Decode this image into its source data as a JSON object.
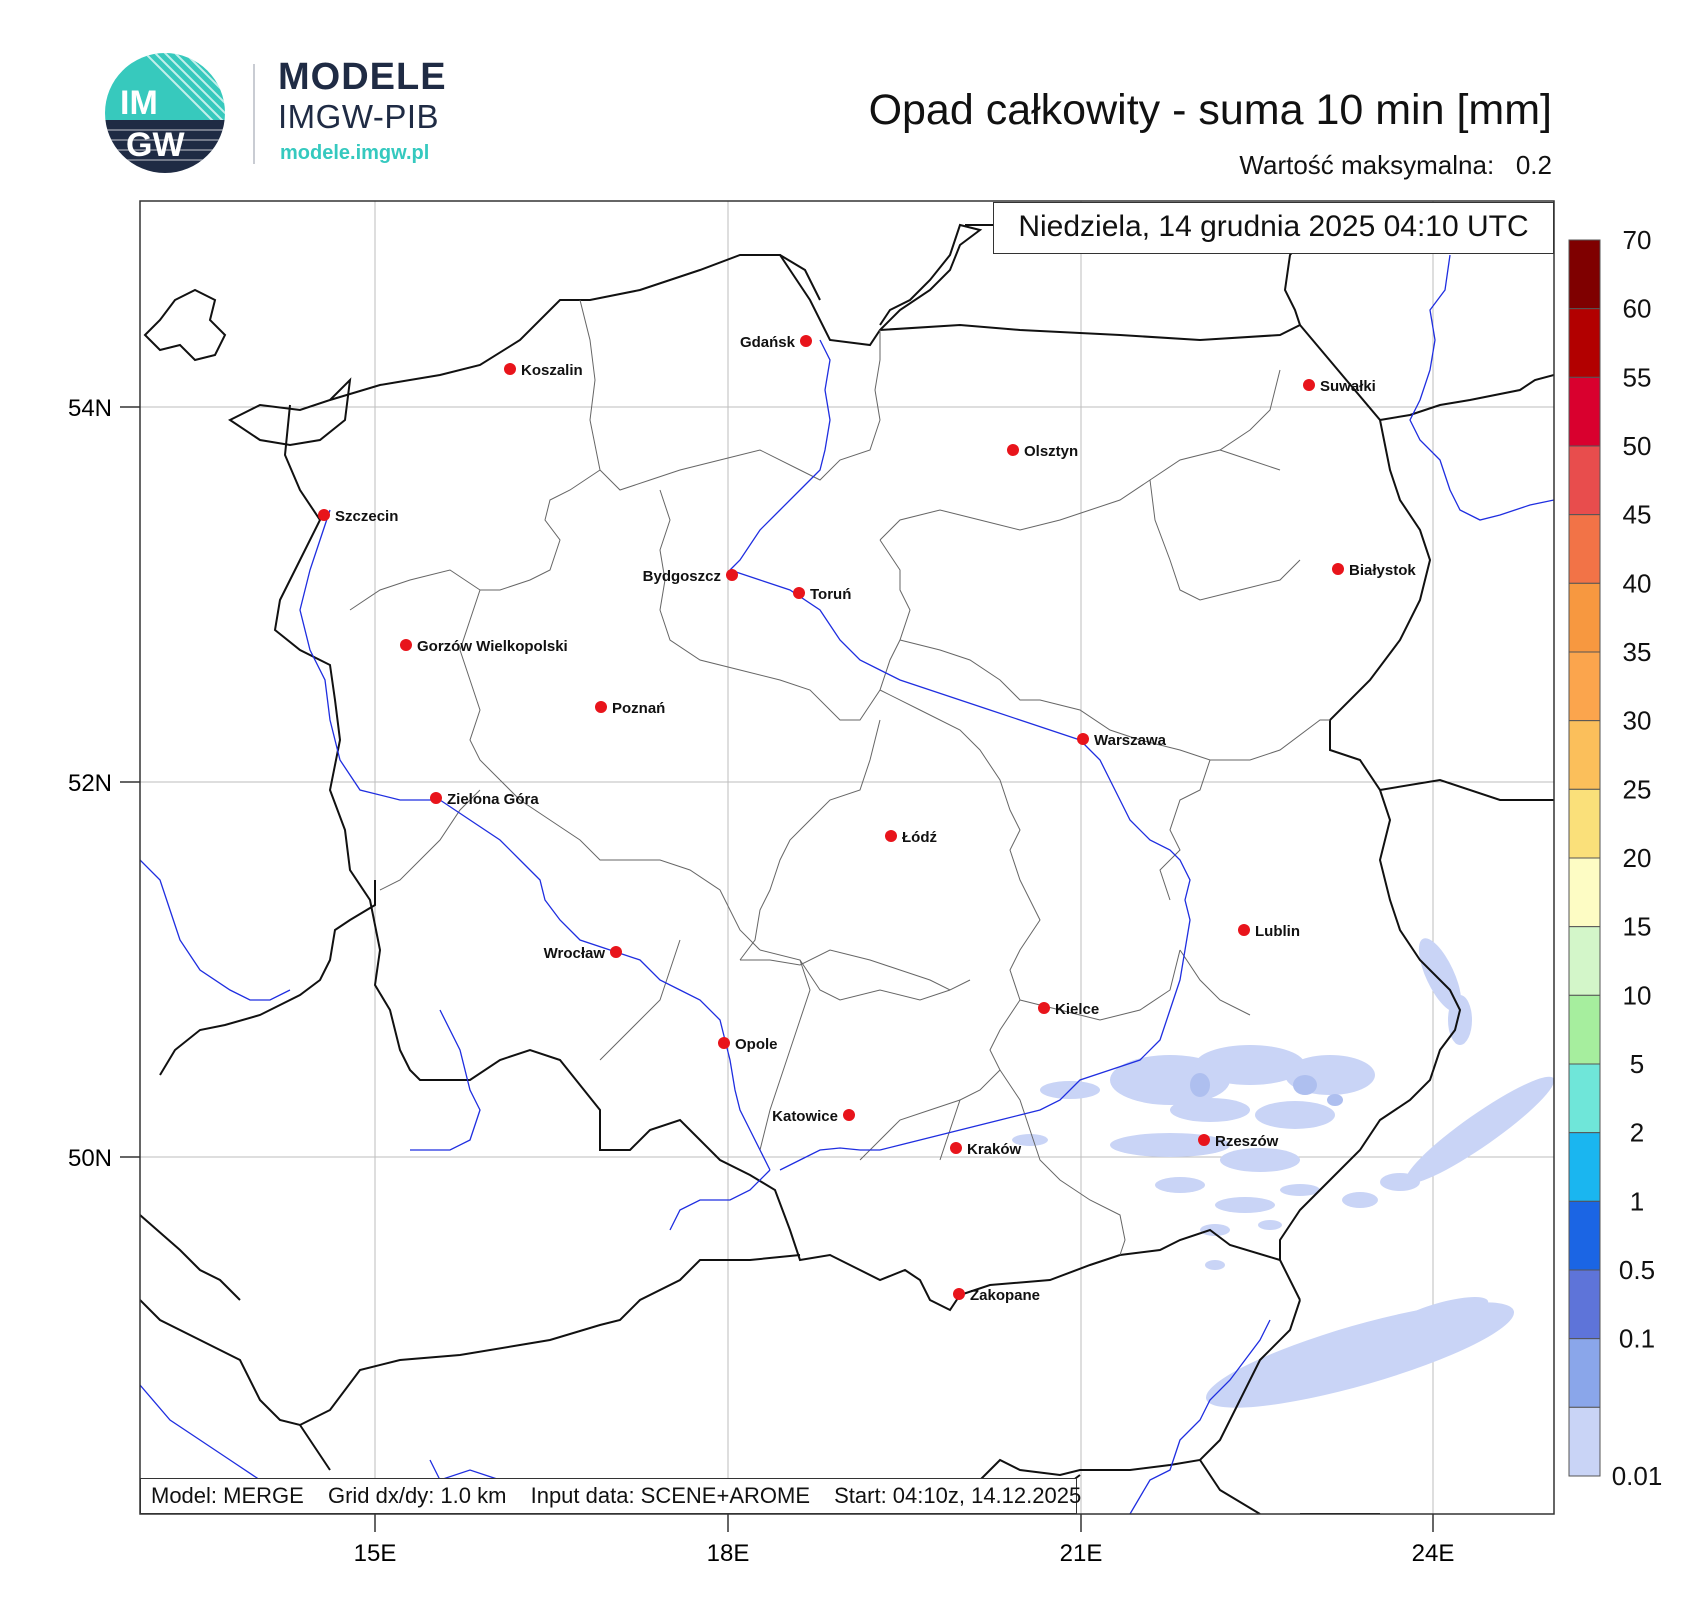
{
  "brand": {
    "logo_text_top": "IM",
    "logo_text_bottom": "GW",
    "name": "MODELE",
    "subtitle": "IMGW-PIB",
    "url": "modele.imgw.pl"
  },
  "map": {
    "title": "Opad całkowity - suma 10 min [mm]",
    "max_value_label": "Wartość maksymalna:",
    "max_value": "0.2",
    "datetime": "Niedziela, 14 grudnia 2025 04:10 UTC",
    "lat_labels": [
      "54N",
      "52N",
      "50N"
    ],
    "lon_labels": [
      "15E",
      "18E",
      "21E",
      "24E"
    ],
    "cities": [
      "Gdańsk",
      "Koszalin",
      "Suwałki",
      "Olsztyn",
      "Szczecin",
      "Białystok",
      "Bydgoszcz",
      "Toruń",
      "Gorzów Wielkopolski",
      "Poznań",
      "Warszawa",
      "Zielona Góra",
      "Łódź",
      "Lublin",
      "Wrocław",
      "Kielce",
      "Opole",
      "Katowice",
      "Rzeszów",
      "Kraków",
      "Zakopane"
    ],
    "city_marker_color": "#e8141b",
    "river_color": "#1f2ee0"
  },
  "legend": {
    "labels": [
      "70",
      "60",
      "55",
      "50",
      "45",
      "40",
      "35",
      "30",
      "25",
      "20",
      "15",
      "10",
      "5",
      "2",
      "1",
      "0.5",
      "0.1",
      "0.01"
    ],
    "colors": [
      "#7f0000",
      "#b20000",
      "#d9002e",
      "#e84d4d",
      "#f27347",
      "#f79840",
      "#fba54d",
      "#fbbf5b",
      "#fae07a",
      "#fdfcc4",
      "#d3f6c9",
      "#a6ee9e",
      "#6fe6d9",
      "#1ab6f0",
      "#1b65e4",
      "#5e74d9",
      "#8aa6ea",
      "#c9d4f6"
    ]
  },
  "footer": {
    "model": "Model: MERGE",
    "grid": "Grid dx/dy: 1.0 km",
    "input": "Input data: SCENE+AROME",
    "start": "Start: 04:10z, 14.12.2025"
  }
}
